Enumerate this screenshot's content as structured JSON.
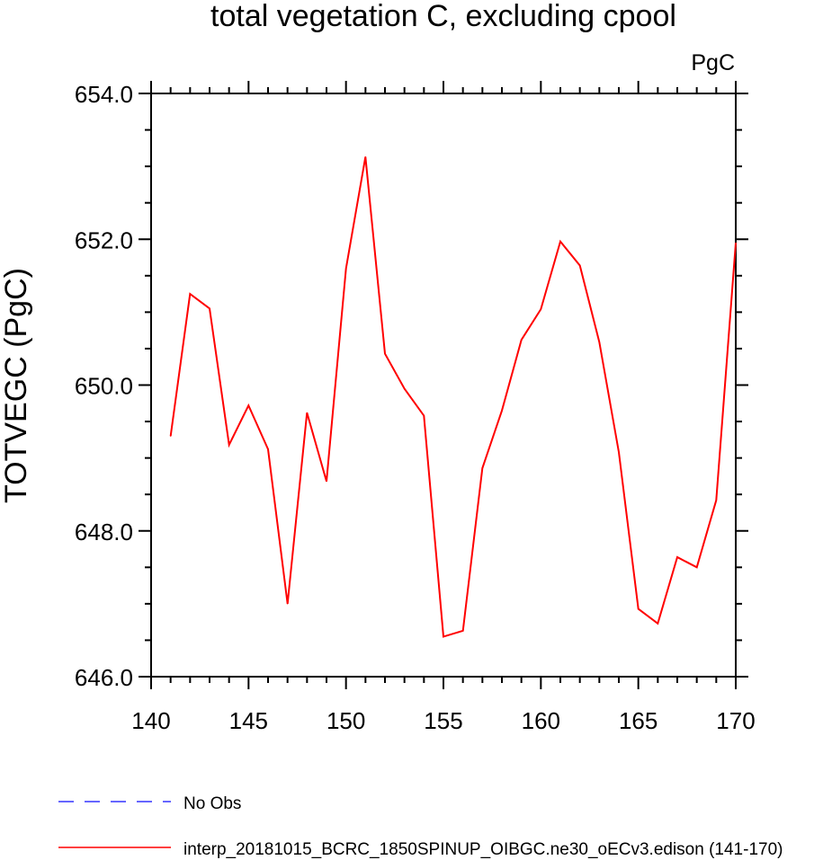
{
  "chart_data": {
    "type": "line",
    "title": "total vegetation C, excluding cpool",
    "units_label": "PgC",
    "xlabel": "",
    "ylabel": "TOTVEGC  (PgC)",
    "xlim": [
      140,
      170
    ],
    "ylim": [
      646,
      654
    ],
    "x_ticks": [
      "140",
      "145",
      "150",
      "155",
      "160",
      "165",
      "170"
    ],
    "y_ticks": [
      "646.0",
      "648.0",
      "650.0",
      "652.0",
      "654.0"
    ],
    "series": [
      {
        "name": "interp_20181015_BCRC_1850SPINUP_OIBGC.ne30_oECv3.edison (141-170)",
        "color": "#ff0000",
        "x": [
          141,
          142,
          143,
          144,
          145,
          146,
          147,
          148,
          149,
          150,
          151,
          152,
          153,
          154,
          155,
          156,
          157,
          158,
          159,
          160,
          161,
          162,
          163,
          164,
          165,
          166,
          167,
          168,
          169,
          170
        ],
        "values": [
          649.3,
          651.25,
          651.05,
          649.18,
          649.72,
          649.12,
          647.0,
          649.62,
          648.68,
          651.6,
          653.13,
          650.43,
          649.95,
          649.58,
          646.55,
          646.63,
          648.86,
          649.65,
          650.62,
          651.04,
          651.97,
          651.64,
          650.59,
          649.08,
          646.93,
          646.73,
          647.64,
          647.5,
          648.42,
          651.95
        ]
      }
    ],
    "legend": [
      {
        "name": "No Obs",
        "color": "#3333ff",
        "dash": "dashed"
      },
      {
        "name": "interp_20181015_BCRC_1850SPINUP_OIBGC.ne30_oECv3.edison (141-170)",
        "color": "#ff0000",
        "dash": "solid"
      }
    ]
  }
}
